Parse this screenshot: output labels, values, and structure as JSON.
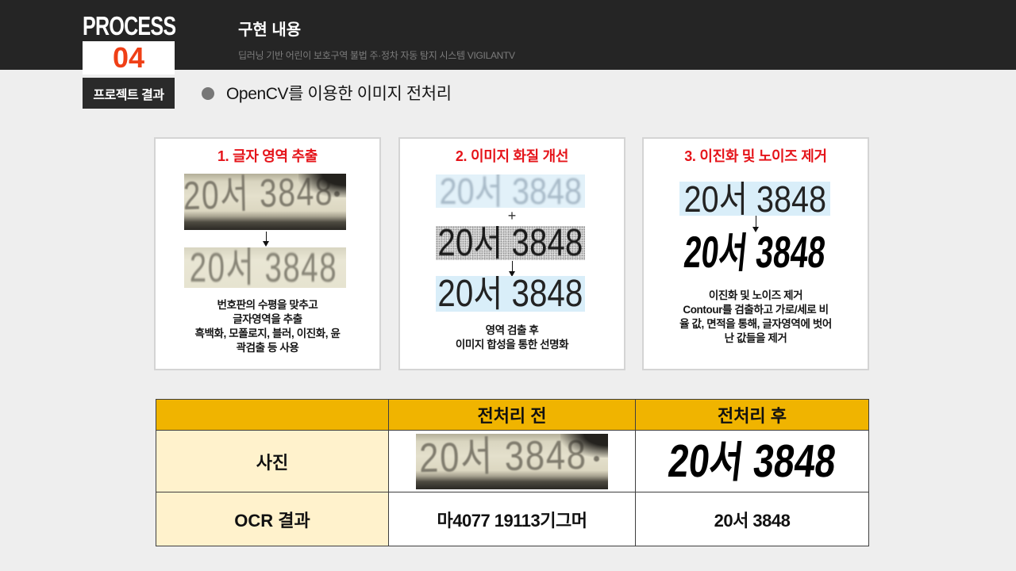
{
  "colors": {
    "page_background": "#eeeeee",
    "header_bar": "#252525",
    "section_number": "#ef3f16",
    "step_title": "#e5141a",
    "table_header": "#f0b400",
    "table_label_column": "#fff2cc"
  },
  "icons": {
    "bullet": "bullet-icon",
    "step_arrow": "arrow-down-icon"
  },
  "header": {
    "section_label": "PROCESS",
    "section_number": "04",
    "section_name": "프로젝트 결과",
    "title": "구현 내용",
    "subtitle": "딥러닝 기반 어린이 보호구역 불법 주·정차 자동 탐지 시스템 VIGILANTV"
  },
  "main": {
    "bullet_heading": "OpenCV를 이용한 이미지 전처리",
    "plate_text": "20서 3848",
    "steps": [
      {
        "title": "1. 글자 영역 추출",
        "description": [
          "번호판의 수평을 맞추고",
          "글자영역을 추출",
          "흑백화, 모폴로지, 블러, 이진화, 윤",
          "곽검출 등 사용"
        ]
      },
      {
        "title": "2. 이미지 화질 개선",
        "combine_symbol": "+",
        "description": [
          "영역 검출 후",
          "이미지 합성을 통한 선명화"
        ]
      },
      {
        "title": "3. 이진화 및 노이즈 제거",
        "description": [
          "이진화 및 노이즈 제거",
          "Contour를 검출하고 가로/세로 비",
          "율 값, 면적을 통해, 글자영역에 벗어",
          "난 값들을 제거"
        ]
      }
    ]
  },
  "table": {
    "columns": [
      "",
      "전처리 전",
      "전처리 후"
    ],
    "rows": [
      {
        "label": "사진"
      },
      {
        "label": "OCR 결과",
        "before": "마4077 19113기그머",
        "after": "20서 3848"
      }
    ]
  }
}
